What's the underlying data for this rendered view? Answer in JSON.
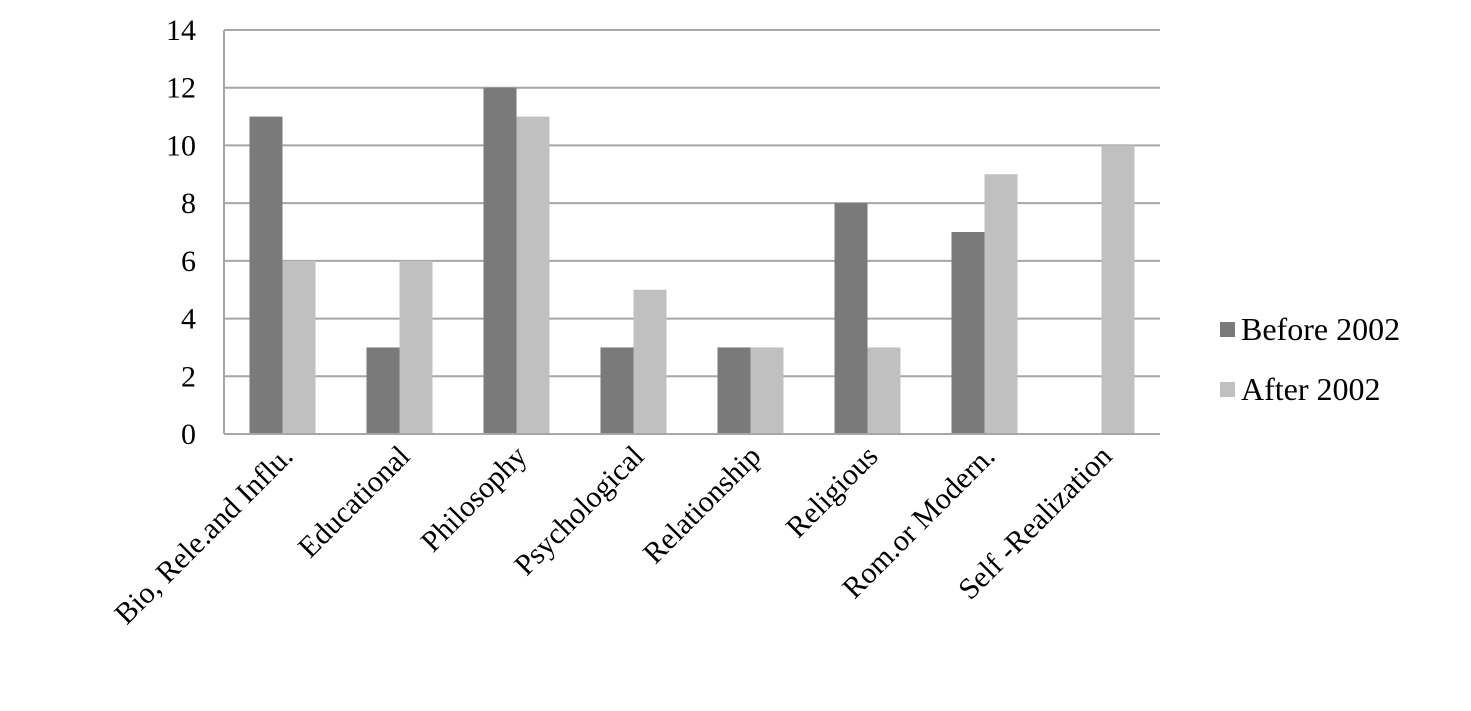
{
  "chart_data": {
    "type": "bar",
    "title": "",
    "xlabel": "",
    "ylabel": "",
    "ylim": [
      0,
      14
    ],
    "yticks": [
      0,
      2,
      4,
      6,
      8,
      10,
      12,
      14
    ],
    "grid": true,
    "legend_position": "right",
    "categories": [
      "Bio, Rele.and Influ.",
      "Educational",
      "Philosophy",
      "Psychological",
      "Relationship",
      "Religious",
      "Rom.or Modern.",
      "Self -Realization"
    ],
    "series": [
      {
        "name": "Before 2002",
        "color": "#7a7a7a",
        "values": [
          11,
          3,
          12,
          3,
          3,
          8,
          7,
          0
        ]
      },
      {
        "name": "After 2002",
        "color": "#c0c0c0",
        "values": [
          6,
          6,
          11,
          5,
          3,
          3,
          9,
          10
        ]
      }
    ]
  }
}
